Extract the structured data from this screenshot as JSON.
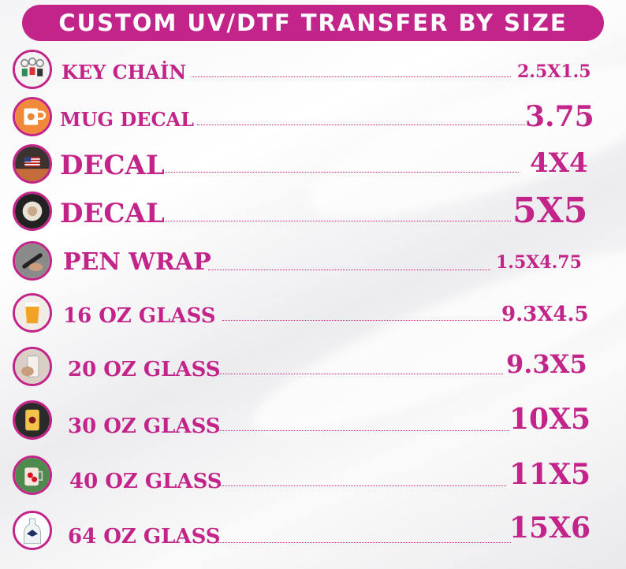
{
  "colors": {
    "accent": "#c2248a",
    "banner_text": "#ffffff"
  },
  "header": {
    "title": "CUSTOM UV/DTF TRANSFER BY SIZE"
  },
  "items": [
    {
      "name": "KEY CHAİN",
      "size": "2.5X1.5",
      "icon": "keychain-icon"
    },
    {
      "name": "MUG DECAL",
      "size": "3.75",
      "icon": "mug-icon"
    },
    {
      "name": "DECAL",
      "size": "4X4",
      "icon": "flag-decal-icon"
    },
    {
      "name": "DECAL",
      "size": "5X5",
      "icon": "round-decal-icon"
    },
    {
      "name": "PEN WRAP",
      "size": "1.5X4.75",
      "icon": "pen-icon"
    },
    {
      "name": "16 OZ GLASS",
      "size": "9.3X4.5",
      "icon": "beer-glass-icon"
    },
    {
      "name": "20 OZ GLASS",
      "size": "9.3X5",
      "icon": "glass-in-hand-icon"
    },
    {
      "name": "30 OZ GLASS",
      "size": "10X5",
      "icon": "can-glass-icon"
    },
    {
      "name": "40 OZ GLASS",
      "size": "11X5",
      "icon": "tumbler-icon"
    },
    {
      "name": "64 OZ GLASS",
      "size": "15X6",
      "icon": "growler-icon"
    }
  ]
}
